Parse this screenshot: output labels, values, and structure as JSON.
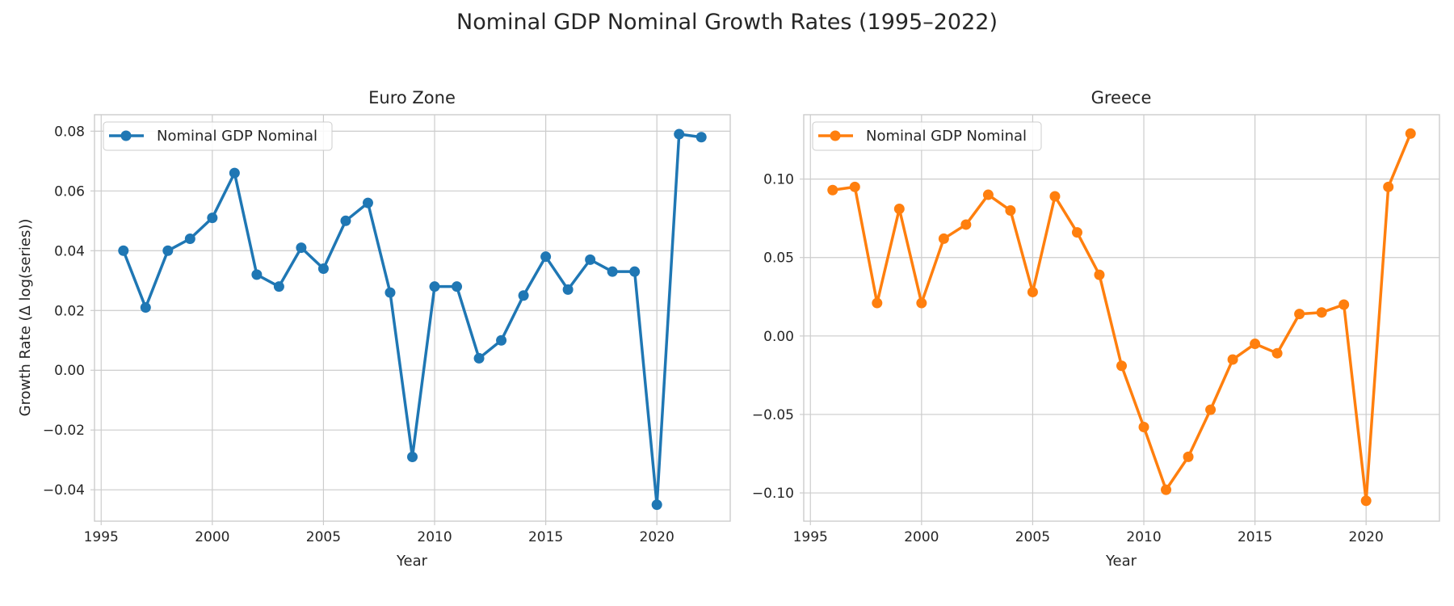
{
  "figure": {
    "title": "Nominal GDP Nominal Growth Rates (1995–2022)"
  },
  "chart_data": [
    {
      "type": "line",
      "title": "Euro Zone",
      "xlabel": "Year",
      "ylabel": "Growth Rate (Δ log(series))",
      "xlim": [
        1994.7,
        2023.3
      ],
      "ylim": [
        -0.0505,
        0.0855
      ],
      "xticks": [
        1995,
        2000,
        2005,
        2010,
        2015,
        2020
      ],
      "yticks": [
        -0.04,
        -0.02,
        0.0,
        0.02,
        0.04,
        0.06,
        0.08
      ],
      "ytick_labels": [
        "−0.04",
        "−0.02",
        "0.00",
        "0.02",
        "0.04",
        "0.06",
        "0.08"
      ],
      "grid": true,
      "legend": "upper-left",
      "color": "#1f77b4",
      "x": [
        1996,
        1997,
        1998,
        1999,
        2000,
        2001,
        2002,
        2003,
        2004,
        2005,
        2006,
        2007,
        2008,
        2009,
        2010,
        2011,
        2012,
        2013,
        2014,
        2015,
        2016,
        2017,
        2018,
        2019,
        2020,
        2021,
        2022
      ],
      "series": [
        {
          "name": "Nominal GDP Nominal",
          "values": [
            0.04,
            0.021,
            0.04,
            0.044,
            0.051,
            0.066,
            0.032,
            0.028,
            0.041,
            0.034,
            0.05,
            0.056,
            0.026,
            -0.029,
            0.028,
            0.028,
            0.004,
            0.01,
            0.025,
            0.038,
            0.027,
            0.037,
            0.033,
            0.033,
            -0.045,
            0.079,
            0.078
          ]
        }
      ]
    },
    {
      "type": "line",
      "title": "Greece",
      "xlabel": "Year",
      "ylabel": "",
      "xlim": [
        1994.7,
        2023.3
      ],
      "ylim": [
        -0.118,
        0.141
      ],
      "xticks": [
        1995,
        2000,
        2005,
        2010,
        2015,
        2020
      ],
      "yticks": [
        -0.1,
        -0.05,
        0.0,
        0.05,
        0.1
      ],
      "ytick_labels": [
        "−0.10",
        "−0.05",
        "0.00",
        "0.05",
        "0.10"
      ],
      "grid": true,
      "legend": "upper-left",
      "color": "#ff7f0e",
      "x": [
        1996,
        1997,
        1998,
        1999,
        2000,
        2001,
        2002,
        2003,
        2004,
        2005,
        2006,
        2007,
        2008,
        2009,
        2010,
        2011,
        2012,
        2013,
        2014,
        2015,
        2016,
        2017,
        2018,
        2019,
        2020,
        2021,
        2022
      ],
      "series": [
        {
          "name": "Nominal GDP Nominal",
          "values": [
            0.093,
            0.095,
            0.021,
            0.081,
            0.021,
            0.062,
            0.071,
            0.09,
            0.08,
            0.028,
            0.089,
            0.066,
            0.039,
            -0.019,
            -0.058,
            -0.098,
            -0.077,
            -0.047,
            -0.015,
            -0.005,
            -0.011,
            0.014,
            0.015,
            0.02,
            -0.105,
            0.095,
            0.129
          ]
        }
      ]
    }
  ]
}
